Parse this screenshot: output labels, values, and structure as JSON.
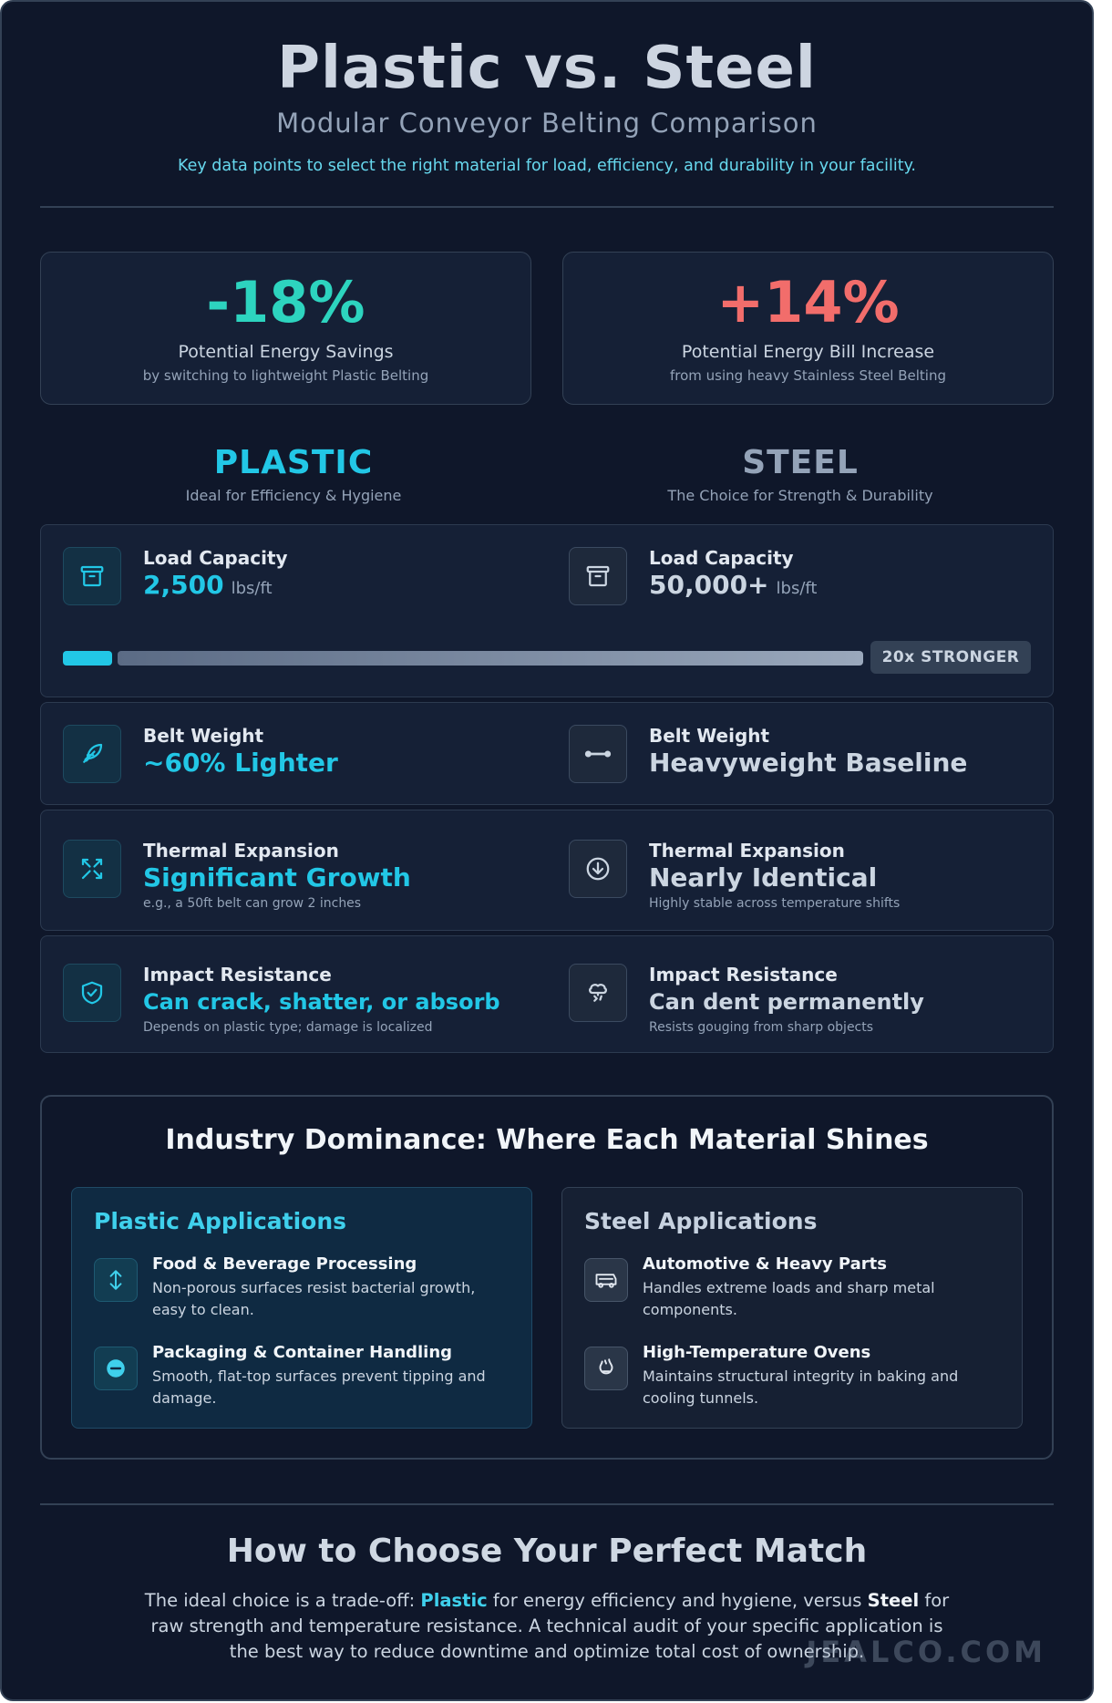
{
  "header": {
    "title": "Plastic vs. Steel",
    "subtitle": "Modular Conveyor Belting Comparison",
    "tagline": "Key data points to select the right material for load, efficiency, and durability in your facility."
  },
  "stats": {
    "plastic": {
      "value": "-18%",
      "label": "Potential Energy Savings",
      "sub": "by switching to lightweight Plastic Belting"
    },
    "steel": {
      "value": "+14%",
      "label": "Potential Energy Bill Increase",
      "sub": "from using heavy Stainless Steel Belting"
    }
  },
  "columns": {
    "plastic": {
      "title": "PLASTIC",
      "subtitle": "Ideal for Efficiency & Hygiene"
    },
    "steel": {
      "title": "STEEL",
      "subtitle": "The Choice for Strength & Durability"
    }
  },
  "load": {
    "plastic": {
      "label": "Load Capacity",
      "value": "2,500",
      "unit": "lbs/ft",
      "icon": "archive-box-icon"
    },
    "steel": {
      "label": "Load Capacity",
      "value": "50,000+",
      "unit": "lbs/ft",
      "icon": "archive-box-icon"
    },
    "ratio_label": "20x STRONGER",
    "plastic_fraction": 0.05,
    "steel_fraction": 1.0
  },
  "weight": {
    "plastic": {
      "label": "Belt Weight",
      "value": "~60% Lighter",
      "icon": "feather-icon"
    },
    "steel": {
      "label": "Belt Weight",
      "value": "Heavyweight Baseline",
      "icon": "dumbbell-icon"
    }
  },
  "thermal": {
    "plastic": {
      "label": "Thermal Expansion",
      "value": "Significant Growth",
      "note": "e.g., a 50ft belt can grow 2 inches",
      "icon": "expand-arrows-icon"
    },
    "steel": {
      "label": "Thermal Expansion",
      "value": "Nearly Identical",
      "note": "Highly stable across temperature shifts",
      "icon": "arrow-down-circle-icon"
    }
  },
  "impact": {
    "plastic": {
      "label": "Impact Resistance",
      "value": "Can crack, shatter, or absorb",
      "note": "Depends on plastic type; damage is localized",
      "icon": "shield-check-icon"
    },
    "steel": {
      "label": "Impact Resistance",
      "value": "Can dent permanently",
      "note": "Resists gouging from sharp objects",
      "icon": "impact-burst-icon"
    }
  },
  "industry": {
    "title": "Industry Dominance: Where Each Material Shines",
    "plastic": {
      "title": "Plastic Applications",
      "items": [
        {
          "name": "Food & Beverage Processing",
          "desc": "Non-porous surfaces resist bacterial growth, easy to clean.",
          "icon": "vertical-arrows-icon"
        },
        {
          "name": "Packaging & Container Handling",
          "desc": "Smooth, flat-top surfaces prevent tipping and damage.",
          "icon": "minus-circle-icon"
        }
      ]
    },
    "steel": {
      "title": "Steel Applications",
      "items": [
        {
          "name": "Automotive & Heavy Parts",
          "desc": "Handles extreme loads and sharp metal components.",
          "icon": "car-part-icon"
        },
        {
          "name": "High-Temperature Ovens",
          "desc": "Maintains structural integrity in baking and cooling tunnels.",
          "icon": "oven-mitt-icon"
        }
      ]
    }
  },
  "choose": {
    "title": "How to Choose Your Perfect Match",
    "body_1": "The ideal choice is a trade-off: ",
    "plastic_word": "Plastic",
    "body_2": " for energy efficiency and hygiene, versus ",
    "steel_word": "Steel",
    "body_3": " for raw strength and temperature resistance. A technical audit of your specific application is the best way to reduce downtime and optimize total cost of ownership."
  },
  "watermark": "JEALCO.COM",
  "colors": {
    "background": "#0f172a",
    "plastic_accent": "#22c7e6",
    "savings_green": "#2dd4bf",
    "increase_red": "#f26d6b",
    "steel_gray": "#94a3b8"
  }
}
